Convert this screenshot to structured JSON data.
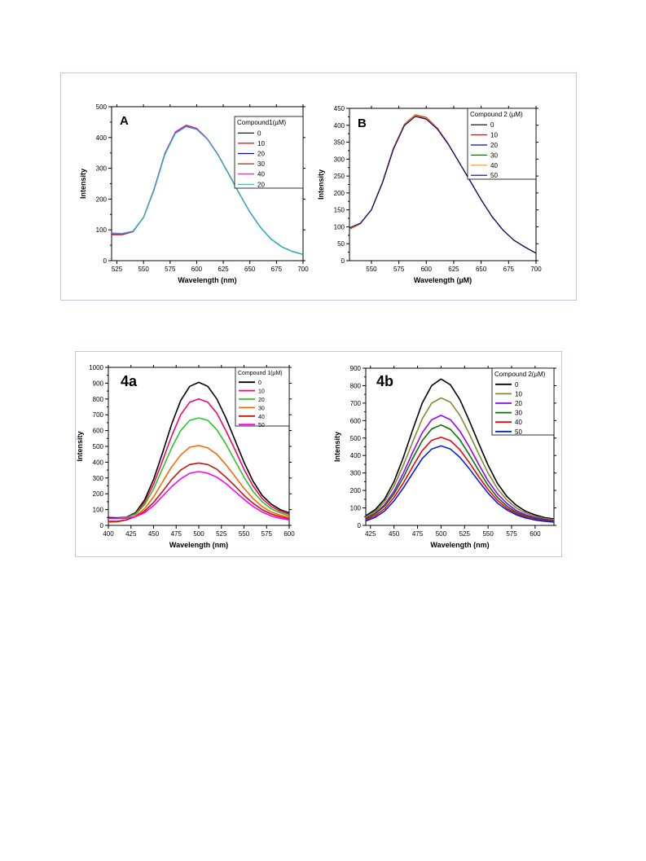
{
  "chart_data": [
    {
      "type": "line",
      "panel_label": "A",
      "xlabel": "Wavelength (nm)",
      "ylabel": "Intensity",
      "xlim": [
        520,
        700
      ],
      "ylim": [
        0,
        500
      ],
      "xticks": [
        525,
        550,
        575,
        600,
        625,
        650,
        675,
        700
      ],
      "yticks": [
        0,
        100,
        200,
        300,
        400,
        500
      ],
      "legend_title": "Compound1(µM)",
      "legend_position": "top-right",
      "x": [
        520,
        530,
        540,
        550,
        560,
        570,
        580,
        590,
        600,
        610,
        620,
        630,
        640,
        650,
        660,
        670,
        680,
        690,
        700
      ],
      "series": [
        {
          "name": "0",
          "color": "#000000",
          "values": [
            89,
            88,
            95,
            140,
            230,
            345,
            415,
            437,
            428,
            395,
            344,
            282,
            218,
            158,
            108,
            70,
            45,
            30,
            20
          ]
        },
        {
          "name": "10",
          "color": "#ff0000",
          "values": [
            84,
            84,
            94,
            141,
            233,
            348,
            418,
            440,
            430,
            396,
            345,
            283,
            219,
            158,
            108,
            70,
            45,
            30,
            20
          ]
        },
        {
          "name": "20",
          "color": "#0000ff",
          "values": [
            87,
            86,
            94,
            140,
            231,
            346,
            416,
            438,
            428,
            395,
            344,
            282,
            218,
            158,
            108,
            70,
            45,
            30,
            20
          ]
        },
        {
          "name": "30",
          "color": "#993300",
          "values": [
            86,
            86,
            95,
            141,
            232,
            347,
            417,
            439,
            429,
            395,
            344,
            282,
            218,
            158,
            108,
            70,
            45,
            30,
            20
          ]
        },
        {
          "name": "40",
          "color": "#ff00ff",
          "values": [
            88,
            87,
            95,
            140,
            231,
            346,
            416,
            438,
            428,
            395,
            344,
            282,
            218,
            158,
            108,
            70,
            45,
            30,
            20
          ]
        },
        {
          "name": "20",
          "color": "#00cccc",
          "values": [
            90,
            89,
            96,
            140,
            229,
            343,
            413,
            435,
            426,
            394,
            343,
            281,
            218,
            158,
            108,
            70,
            45,
            30,
            20
          ]
        }
      ]
    },
    {
      "type": "line",
      "panel_label": "B",
      "xlabel": "Wavelength (µM)",
      "ylabel": "Intensity",
      "xlim": [
        530,
        700
      ],
      "ylim": [
        0,
        450
      ],
      "xticks": [
        550,
        575,
        600,
        625,
        650,
        675,
        700
      ],
      "yticks": [
        0,
        50,
        100,
        150,
        200,
        250,
        300,
        350,
        400,
        450
      ],
      "legend_title": "Compound 2 (µM)",
      "legend_position": "top-right",
      "x": [
        530,
        540,
        550,
        560,
        570,
        580,
        590,
        600,
        610,
        620,
        630,
        640,
        650,
        660,
        670,
        680,
        690,
        700
      ],
      "series": [
        {
          "name": "0",
          "color": "#000000",
          "values": [
            95,
            110,
            150,
            230,
            330,
            400,
            428,
            420,
            390,
            345,
            290,
            235,
            180,
            130,
            90,
            60,
            40,
            22
          ]
        },
        {
          "name": "10",
          "color": "#ff0000",
          "values": [
            93,
            109,
            151,
            232,
            333,
            403,
            431,
            423,
            392,
            346,
            291,
            235,
            180,
            130,
            90,
            60,
            40,
            22
          ]
        },
        {
          "name": "20",
          "color": "#0000ff",
          "values": [
            96,
            110,
            150,
            230,
            330,
            400,
            427,
            419,
            389,
            344,
            290,
            235,
            180,
            130,
            90,
            60,
            40,
            22
          ]
        },
        {
          "name": "30",
          "color": "#008000",
          "values": [
            94,
            110,
            151,
            231,
            331,
            401,
            429,
            421,
            390,
            345,
            290,
            235,
            180,
            130,
            90,
            60,
            40,
            22
          ]
        },
        {
          "name": "40",
          "color": "#ff9900",
          "values": [
            95,
            110,
            150,
            230,
            331,
            401,
            429,
            421,
            390,
            345,
            290,
            235,
            180,
            130,
            90,
            60,
            40,
            22
          ]
        },
        {
          "name": "50",
          "color": "#000080",
          "values": [
            97,
            111,
            150,
            229,
            329,
            399,
            426,
            418,
            389,
            344,
            290,
            235,
            180,
            130,
            90,
            60,
            40,
            22
          ]
        }
      ]
    },
    {
      "type": "line",
      "panel_label": "4a",
      "xlabel": "Wavelength (nm)",
      "ylabel": "Intensity",
      "xlim": [
        400,
        600
      ],
      "ylim": [
        0,
        1000
      ],
      "xticks": [
        400,
        425,
        450,
        475,
        500,
        525,
        550,
        575,
        600
      ],
      "yticks": [
        0,
        100,
        200,
        300,
        400,
        500,
        600,
        700,
        800,
        900,
        1000
      ],
      "legend_title": "Compound 1(µM)",
      "legend_position": "top-right",
      "x": [
        400,
        410,
        420,
        430,
        440,
        450,
        460,
        470,
        480,
        490,
        500,
        510,
        520,
        530,
        540,
        550,
        560,
        570,
        580,
        590,
        600
      ],
      "series": [
        {
          "name": "0",
          "color": "#000000",
          "values": [
            50,
            48,
            52,
            80,
            160,
            290,
            460,
            640,
            790,
            880,
            905,
            880,
            800,
            680,
            540,
            400,
            280,
            190,
            135,
            100,
            80
          ]
        },
        {
          "name": "10",
          "color": "#ff0066",
          "values": [
            45,
            45,
            50,
            75,
            145,
            260,
            410,
            565,
            700,
            780,
            800,
            780,
            710,
            600,
            480,
            355,
            250,
            170,
            120,
            90,
            70
          ]
        },
        {
          "name": "20",
          "color": "#22cc22",
          "values": [
            45,
            45,
            50,
            70,
            130,
            230,
            360,
            490,
            600,
            665,
            680,
            665,
            605,
            515,
            410,
            305,
            215,
            150,
            105,
            80,
            60
          ]
        },
        {
          "name": "30",
          "color": "#ff6600",
          "values": [
            20,
            22,
            35,
            60,
            105,
            180,
            275,
            370,
            445,
            495,
            505,
            490,
            450,
            385,
            310,
            235,
            170,
            120,
            85,
            65,
            50
          ]
        },
        {
          "name": "40",
          "color": "#cc1111",
          "values": [
            25,
            25,
            35,
            55,
            90,
            145,
            215,
            290,
            350,
            385,
            395,
            385,
            355,
            305,
            250,
            190,
            140,
            100,
            72,
            55,
            42
          ]
        },
        {
          "name": "50",
          "color": "#ff00ff",
          "values": [
            45,
            44,
            46,
            55,
            80,
            125,
            185,
            245,
            295,
            330,
            340,
            330,
            305,
            265,
            215,
            165,
            120,
            85,
            60,
            45,
            35
          ]
        }
      ]
    },
    {
      "type": "line",
      "panel_label": "4b",
      "xlabel": "Wavelength (nm)",
      "ylabel": "Intensity",
      "xlim": [
        420,
        620
      ],
      "ylim": [
        0,
        900
      ],
      "xticks": [
        425,
        450,
        475,
        500,
        525,
        550,
        575,
        600
      ],
      "yticks": [
        0,
        100,
        200,
        300,
        400,
        500,
        600,
        700,
        800,
        900
      ],
      "legend_title": "Compound 2(µM)",
      "legend_position": "top-right",
      "x": [
        420,
        430,
        440,
        450,
        460,
        470,
        480,
        490,
        500,
        510,
        520,
        530,
        540,
        550,
        560,
        570,
        580,
        590,
        600,
        610,
        620
      ],
      "series": [
        {
          "name": "0",
          "color": "#000000",
          "values": [
            55,
            90,
            150,
            250,
            390,
            550,
            700,
            800,
            838,
            805,
            720,
            600,
            470,
            345,
            240,
            165,
            115,
            80,
            60,
            45,
            37
          ]
        },
        {
          "name": "10",
          "color": "#888833",
          "values": [
            48,
            80,
            135,
            225,
            345,
            480,
            610,
            700,
            730,
            705,
            630,
            525,
            410,
            300,
            210,
            145,
            100,
            70,
            52,
            40,
            32
          ]
        },
        {
          "name": "20",
          "color": "#9900ff",
          "values": [
            40,
            70,
            118,
            195,
            300,
            420,
            530,
            605,
            630,
            605,
            540,
            450,
            350,
            255,
            180,
            125,
            85,
            60,
            45,
            35,
            28
          ]
        },
        {
          "name": "30",
          "color": "#007700",
          "values": [
            38,
            66,
            110,
            180,
            275,
            385,
            485,
            552,
            575,
            550,
            490,
            405,
            315,
            230,
            160,
            110,
            75,
            53,
            40,
            31,
            25
          ]
        },
        {
          "name": "40",
          "color": "#ff0000",
          "values": [
            32,
            56,
            95,
            160,
            243,
            338,
            428,
            487,
            505,
            485,
            433,
            360,
            280,
            205,
            143,
            98,
            67,
            47,
            35,
            27,
            22
          ]
        },
        {
          "name": "50",
          "color": "#0022ee",
          "values": [
            25,
            46,
            82,
            140,
            215,
            300,
            383,
            437,
            455,
            437,
            390,
            325,
            253,
            185,
            128,
            88,
            60,
            42,
            31,
            24,
            19
          ]
        }
      ]
    }
  ]
}
